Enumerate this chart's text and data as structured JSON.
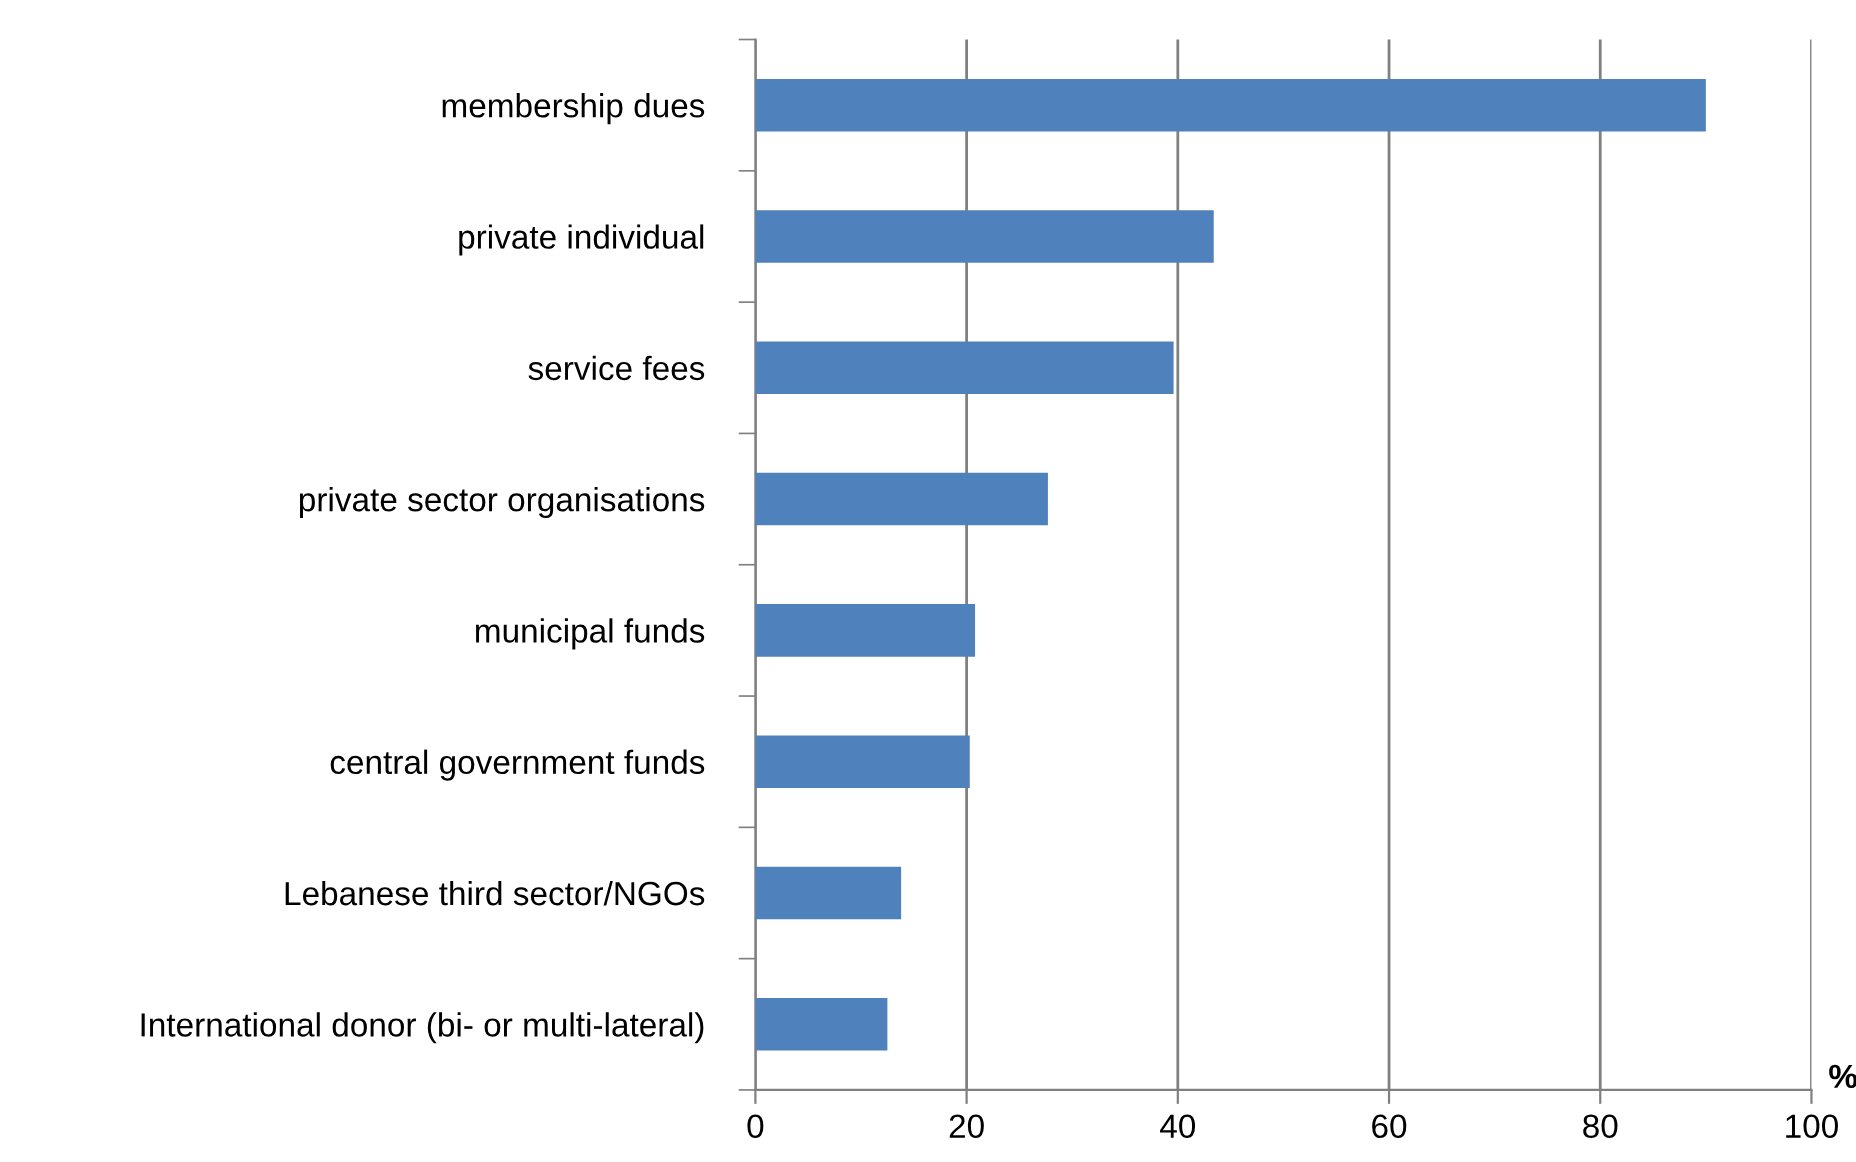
{
  "chart_data": {
    "type": "bar",
    "orientation": "horizontal",
    "xlabel": "%",
    "categories": [
      "membership dues",
      "private individual",
      "service fees",
      "private sector organisations",
      "municipal funds",
      "central government funds",
      "Lebanese third sector/NGOs",
      "International donor (bi- or multi-lateral)"
    ],
    "values": [
      90,
      43.4,
      39.6,
      27.7,
      20.8,
      20.3,
      13.8,
      12.5
    ],
    "color": "#4f81bd",
    "xlim": [
      0,
      100
    ],
    "xticks": [
      0,
      20,
      40,
      60,
      80,
      100
    ],
    "grid": "x",
    "legend": false
  }
}
